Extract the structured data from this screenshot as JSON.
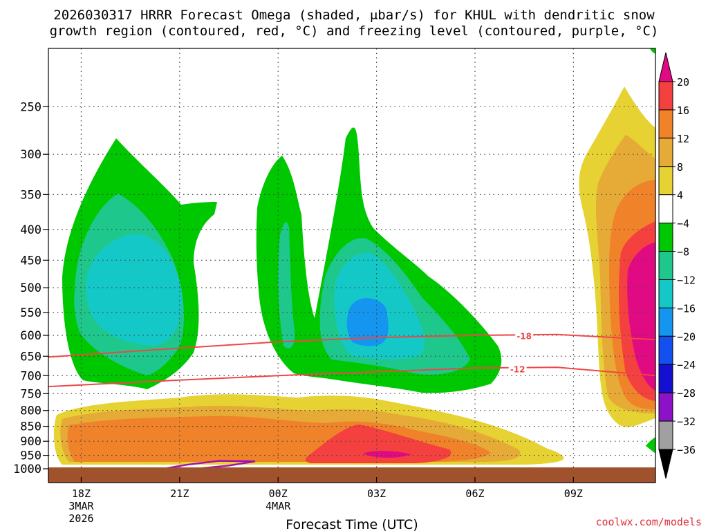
{
  "chart_data": {
    "type": "heatmap",
    "title_line1": "2026030317 HRRR Forecast Omega (shaded, μbar/s) for KHUL with dendritic snow",
    "title_line2": "growth region (contoured, red, °C) and freezing level (contoured, purple, °C)",
    "xlabel": "Forecast Time (UTC)",
    "x_ticks": [
      {
        "label": "18Z",
        "sub1": "3MAR",
        "sub2": "2026",
        "hour": 0
      },
      {
        "label": "21Z",
        "sub1": "",
        "sub2": "",
        "hour": 3
      },
      {
        "label": "00Z",
        "sub1": "4MAR",
        "sub2": "",
        "hour": 6
      },
      {
        "label": "03Z",
        "sub1": "",
        "sub2": "",
        "hour": 9
      },
      {
        "label": "06Z",
        "sub1": "",
        "sub2": "",
        "hour": 12
      },
      {
        "label": "09Z",
        "sub1": "",
        "sub2": "",
        "hour": 15
      }
    ],
    "xlim_hours": [
      -1,
      17.5
    ],
    "y_ticks": [
      250,
      300,
      350,
      400,
      450,
      500,
      550,
      600,
      650,
      700,
      750,
      800,
      850,
      900,
      950,
      1000
    ],
    "ylim_mb": [
      200,
      1000
    ],
    "y_scale": "log-pressure",
    "grid": true,
    "colorbar": {
      "labels": [
        "20",
        "16",
        "12",
        "8",
        "4",
        "−4",
        "−8",
        "−12",
        "−16",
        "−20",
        "−24",
        "−28",
        "−32",
        "−36"
      ],
      "colors": [
        "#e00a82",
        "#f54040",
        "#f0822a",
        "#e6aa36",
        "#e6d232",
        "#ffffff",
        "#00c800",
        "#1ec88c",
        "#14c8c8",
        "#1496f0",
        "#1450f0",
        "#1410d2",
        "#8c12c8",
        "#a0a0a0"
      ],
      "top_color": "#e00a82",
      "bottom_color": "#000000"
    },
    "contour_labels": [
      {
        "text": "-18",
        "color": "#f04646"
      },
      {
        "text": "-12",
        "color": "#f04646"
      }
    ],
    "dgz_contours": {
      "minus18": [
        [
          -1,
          652
        ],
        [
          3,
          630
        ],
        [
          6,
          615
        ],
        [
          9,
          605
        ],
        [
          12,
          600
        ],
        [
          14.5,
          598
        ],
        [
          17.5,
          610
        ]
      ],
      "minus12": [
        [
          -1,
          730
        ],
        [
          3,
          712
        ],
        [
          6,
          700
        ],
        [
          9,
          690
        ],
        [
          12,
          680
        ],
        [
          14.5,
          678
        ],
        [
          17.5,
          700
        ]
      ]
    },
    "freezing_level": [
      [
        2.5,
        1000
      ],
      [
        3.2,
        985
      ],
      [
        4.2,
        970
      ],
      [
        5.3,
        972
      ],
      [
        4.5,
        988
      ],
      [
        3.5,
        1000
      ]
    ],
    "ground_color": "#a0522d",
    "credit": "coolwx.com/models"
  }
}
